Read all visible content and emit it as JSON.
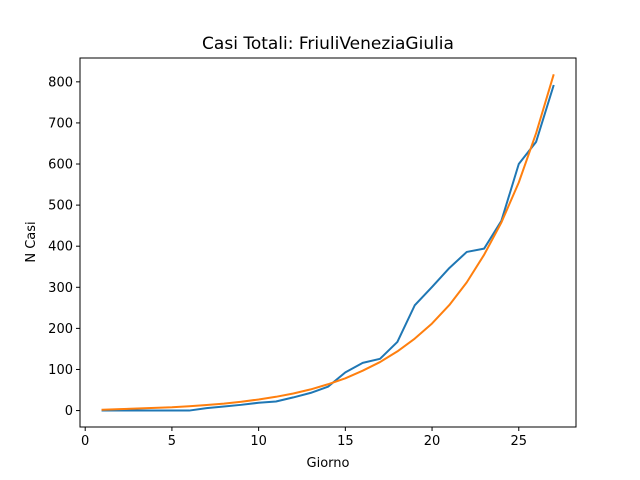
{
  "chart_data": {
    "type": "line",
    "title": "Casi Totali: FriuliVeneziaGiulia",
    "xlabel": "Giorno",
    "ylabel": "N Casi",
    "xlim": [
      -0.3,
      28.3
    ],
    "ylim": [
      -40,
      858
    ],
    "xticks": [
      0,
      5,
      10,
      15,
      20,
      25
    ],
    "yticks": [
      0,
      100,
      200,
      300,
      400,
      500,
      600,
      700,
      800
    ],
    "grid": false,
    "legend": "none",
    "series": [
      {
        "color": "#1f77b4",
        "x": [
          1,
          2,
          3,
          4,
          5,
          6,
          7,
          8,
          9,
          10,
          11,
          12,
          13,
          14,
          15,
          16,
          17,
          18,
          19,
          20,
          21,
          22,
          23,
          24,
          25,
          26,
          27
        ],
        "y": [
          0,
          0,
          0,
          0,
          0,
          0,
          6,
          10,
          14,
          19,
          22,
          32,
          43,
          58,
          93,
          116,
          126,
          167,
          256,
          301,
          347,
          386,
          394,
          462,
          600,
          654,
          790
        ]
      },
      {
        "color": "#ff7f0e",
        "x": [
          1,
          2,
          3,
          4,
          5,
          6,
          7,
          8,
          9,
          10,
          11,
          12,
          13,
          14,
          15,
          16,
          17,
          18,
          19,
          20,
          21,
          22,
          23,
          24,
          25,
          26,
          27
        ],
        "y": [
          2,
          3.5,
          5,
          6.5,
          8,
          10.5,
          13.5,
          17,
          21.5,
          27,
          33.5,
          41.5,
          51.5,
          64,
          78.5,
          97,
          118,
          144,
          175,
          212,
          257,
          312,
          379,
          458,
          555,
          675,
          816
        ]
      }
    ]
  }
}
